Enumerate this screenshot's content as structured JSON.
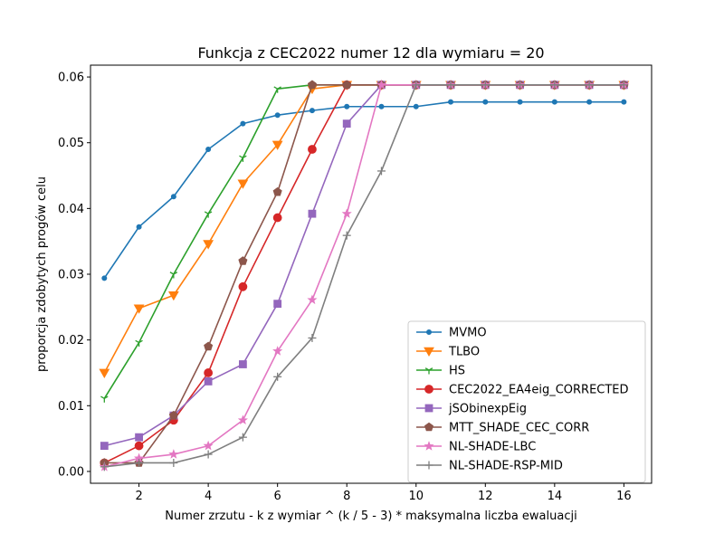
{
  "chart_data": {
    "type": "line",
    "title": "Funkcja z CEC2022 numer 12 dla wymiaru = 20",
    "xlabel": "Numer zrzutu - k z wymiar ^ (k / 5 - 3) * maksymalna liczba ewaluacji",
    "ylabel": "proporcja zdobytych progów celu",
    "xlim": [
      0.6,
      16.8
    ],
    "ylim": [
      -0.0018,
      0.0618
    ],
    "xticks": [
      2,
      4,
      6,
      8,
      10,
      12,
      14,
      16
    ],
    "yticks": [
      0.0,
      0.01,
      0.02,
      0.03,
      0.04,
      0.05,
      0.06
    ],
    "ytick_labels": [
      "0.00",
      "0.01",
      "0.02",
      "0.03",
      "0.04",
      "0.05",
      "0.06"
    ],
    "grid": false,
    "legend_position": "lower-right",
    "x": [
      1,
      2,
      3,
      4,
      5,
      6,
      7,
      8,
      9,
      10,
      11,
      12,
      13,
      14,
      15,
      16
    ],
    "series": [
      {
        "name": "MVMO",
        "color": "#1f77b4",
        "marker": "point",
        "values": [
          0.0294,
          0.0372,
          0.0418,
          0.049,
          0.0529,
          0.0542,
          0.0549,
          0.0555,
          0.0555,
          0.0555,
          0.0562,
          0.0562,
          0.0562,
          0.0562,
          0.0562,
          0.0562
        ]
      },
      {
        "name": "TLBO",
        "color": "#ff7f0e",
        "marker": "triangle-down",
        "values": [
          0.015,
          0.0248,
          0.0268,
          0.0346,
          0.0438,
          0.0497,
          0.0582,
          0.0588,
          0.0588,
          0.0588,
          0.0588,
          0.0588,
          0.0588,
          0.0588,
          0.0588,
          0.0588
        ]
      },
      {
        "name": "HS",
        "color": "#2ca02c",
        "marker": "tri-down",
        "values": [
          0.0111,
          0.0196,
          0.03,
          0.0392,
          0.0477,
          0.0582,
          0.0588,
          0.0588,
          0.0588,
          0.0588,
          0.0588,
          0.0588,
          0.0588,
          0.0588,
          0.0588,
          0.0588
        ]
      },
      {
        "name": "CEC2022_EA4eig_CORRECTED",
        "color": "#d62728",
        "marker": "circle",
        "values": [
          0.0013,
          0.0039,
          0.0078,
          0.015,
          0.0281,
          0.0386,
          0.049,
          0.0588,
          0.0588,
          0.0588,
          0.0588,
          0.0588,
          0.0588,
          0.0588,
          0.0588,
          0.0588
        ]
      },
      {
        "name": "jSObinexpEig",
        "color": "#9467bd",
        "marker": "square",
        "values": [
          0.0039,
          0.0052,
          0.0085,
          0.0137,
          0.0163,
          0.0255,
          0.0392,
          0.0529,
          0.0588,
          0.0588,
          0.0588,
          0.0588,
          0.0588,
          0.0588,
          0.0588,
          0.0588
        ]
      },
      {
        "name": "MTT_SHADE_CEC_CORR",
        "color": "#8c564b",
        "marker": "pentagon",
        "values": [
          0.0013,
          0.0013,
          0.0085,
          0.019,
          0.032,
          0.0425,
          0.0588,
          0.0588,
          0.0588,
          0.0588,
          0.0588,
          0.0588,
          0.0588,
          0.0588,
          0.0588,
          0.0588
        ]
      },
      {
        "name": "NL-SHADE-LBC",
        "color": "#e377c2",
        "marker": "star",
        "values": [
          0.0007,
          0.002,
          0.0026,
          0.0039,
          0.0078,
          0.0183,
          0.0261,
          0.0392,
          0.0588,
          0.0588,
          0.0588,
          0.0588,
          0.0588,
          0.0588,
          0.0588,
          0.0588
        ]
      },
      {
        "name": "NL-SHADE-RSP-MID",
        "color": "#7f7f7f",
        "marker": "plus",
        "values": [
          0.0007,
          0.0013,
          0.0013,
          0.0026,
          0.0052,
          0.0144,
          0.0203,
          0.0359,
          0.0457,
          0.0588,
          0.0588,
          0.0588,
          0.0588,
          0.0588,
          0.0588,
          0.0588
        ]
      }
    ]
  }
}
